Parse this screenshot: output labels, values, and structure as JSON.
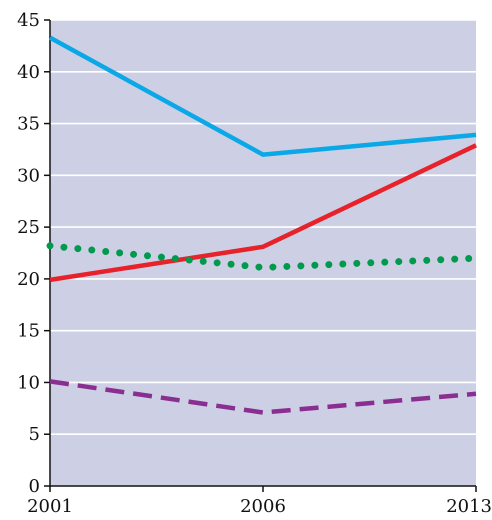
{
  "chart_data": {
    "type": "line",
    "x": [
      "2001",
      "2006",
      "2013"
    ],
    "xticks": [
      "2001",
      "2006",
      "2013"
    ],
    "yticks": [
      "0",
      "5",
      "10",
      "15",
      "20",
      "25",
      "30",
      "35",
      "40",
      "45"
    ],
    "ylim": [
      0,
      45
    ],
    "grid": true,
    "background": "#cdd0e4",
    "series": [
      {
        "values": [
          43.3,
          32.0,
          33.9
        ],
        "color": "#0aa8e6",
        "style": "solid"
      },
      {
        "values": [
          19.9,
          23.1,
          32.9
        ],
        "color": "#e8222a",
        "style": "solid"
      },
      {
        "values": [
          23.2,
          21.1,
          22.0
        ],
        "color": "#00994d",
        "style": "dotted"
      },
      {
        "values": [
          10.1,
          7.1,
          8.9
        ],
        "color": "#8b2e91",
        "style": "dashed"
      }
    ]
  }
}
